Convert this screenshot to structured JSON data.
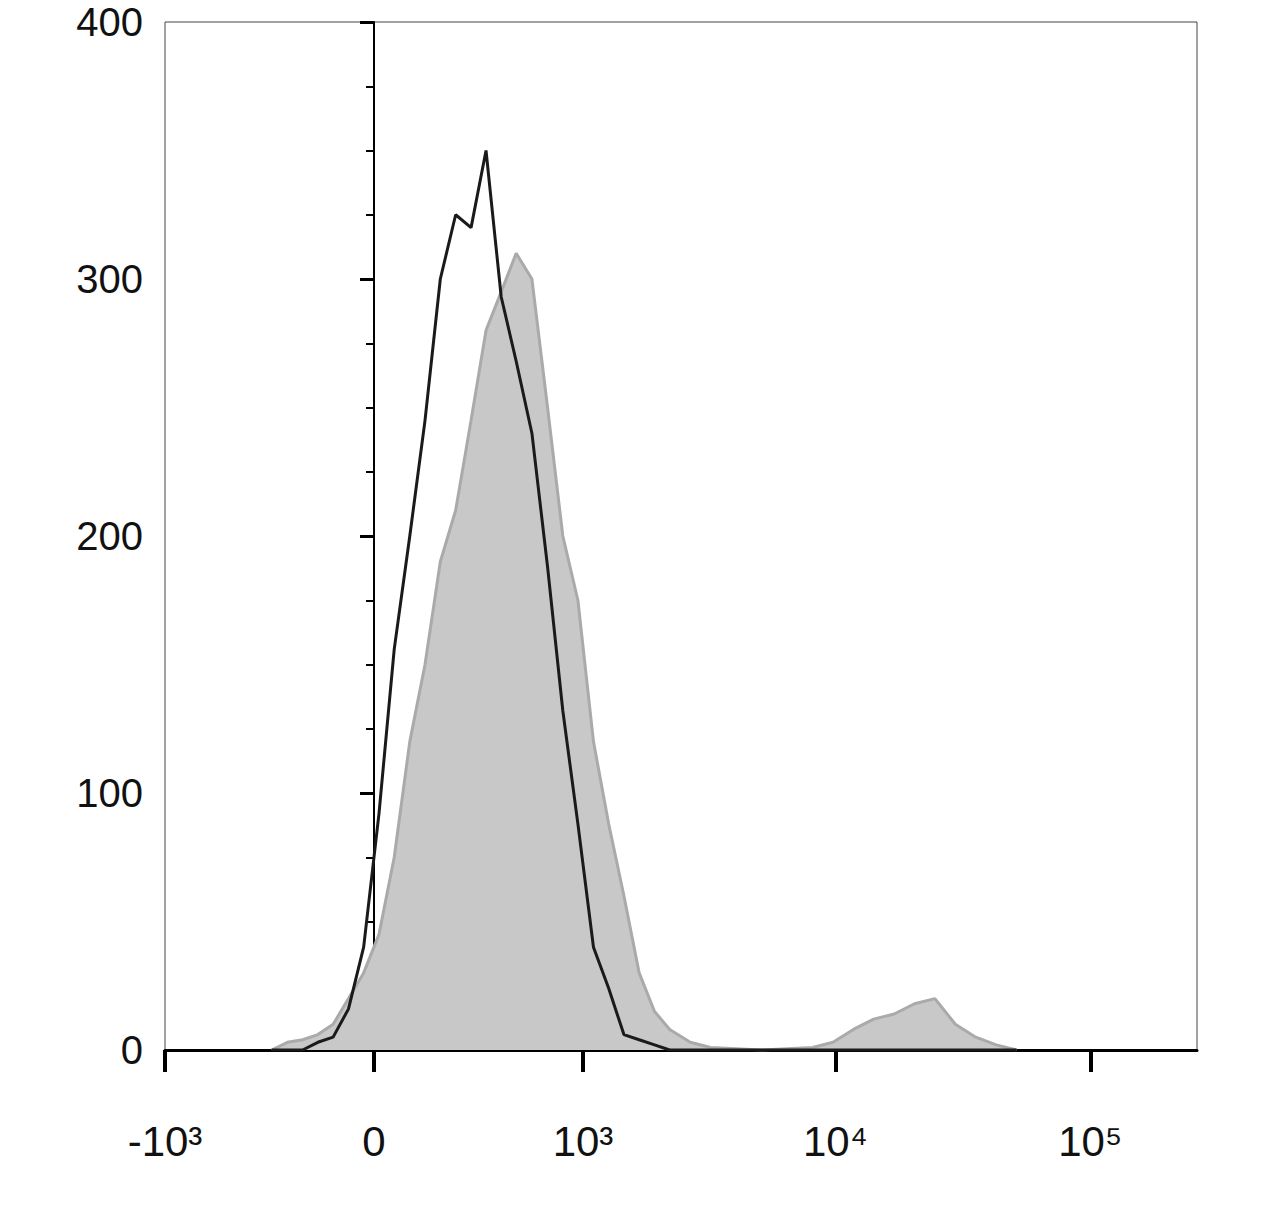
{
  "chart_data": {
    "type": "line",
    "log": "x",
    "x": [
      -329,
      -268,
      -214,
      -164,
      -117,
      -72,
      -29,
      14,
      57,
      102,
      148,
      197,
      250,
      308,
      370,
      440,
      517,
      608,
      711,
      825,
      953,
      1104,
      1272,
      1465,
      1686,
      1941,
      2229,
      2688,
      3233,
      5134,
      8138,
      9790,
      11768,
      14140,
      17010,
      20440,
      24580,
      29560,
      35540,
      42740,
      51400
    ],
    "series": [
      {
        "type": "area",
        "color": "#c8c8c8",
        "values": [
          0,
          3,
          4,
          6,
          10,
          20,
          30,
          45,
          75,
          120,
          150,
          190,
          210,
          245,
          280,
          295,
          310,
          300,
          250,
          200,
          175,
          120,
          88,
          60,
          30,
          15,
          8,
          3,
          1,
          0,
          1,
          3,
          8,
          12,
          14,
          18,
          20,
          10,
          5,
          2,
          0
        ]
      },
      {
        "type": "line",
        "color": "#1a1a1a",
        "values": [
          0,
          0,
          0,
          3,
          5,
          16,
          40,
          92,
          156,
          200,
          245,
          300,
          325,
          320,
          350,
          293,
          268,
          240,
          188,
          132,
          88,
          40,
          24,
          6,
          4,
          2,
          0,
          0,
          0,
          0,
          0,
          0,
          0,
          0,
          0,
          0,
          0,
          0,
          0,
          0,
          0
        ]
      }
    ],
    "xlim": [
      -1000,
      262144
    ],
    "xticks": [
      {
        "value": -1000,
        "label": "-10³"
      },
      0,
      {
        "value": 1000,
        "label": "10³"
      },
      {
        "value": 10000,
        "label": "10⁴"
      },
      {
        "value": 100000,
        "label": "10⁵"
      }
    ],
    "ylim": [
      0,
      400
    ],
    "yticks": [
      0,
      100,
      200,
      300,
      400
    ],
    "grid": false
  }
}
